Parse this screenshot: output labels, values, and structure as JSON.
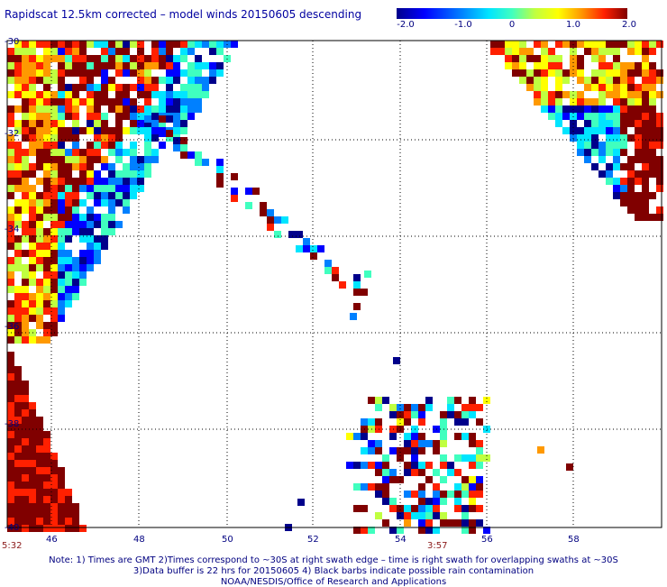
{
  "title": "Rapidscat 12.5km corrected – model winds 20150605 descending",
  "colorbar": {
    "colors": [
      "#00008b",
      "#0000ff",
      "#0080ff",
      "#00e5ff",
      "#40ffbf",
      "#c0ff40",
      "#ffff00",
      "#ff9900",
      "#ff2000",
      "#800000"
    ],
    "tick_labels": [
      "-2.0",
      "-1.0",
      "0",
      "1.0",
      "2.0"
    ],
    "range": [
      -2.0,
      2.0
    ]
  },
  "axes": {
    "lon_labels": [
      "46",
      "48",
      "50",
      "52",
      "54",
      "56",
      "58"
    ],
    "lat_labels": [
      "-30",
      "-32",
      "-34",
      "-36",
      "-38",
      "-40"
    ],
    "lon_range": [
      45,
      59.7
    ],
    "lat_range": [
      -30,
      -40
    ],
    "grid": "dotted"
  },
  "time_labels": [
    "5:32",
    "3:57"
  ],
  "notes": [
    "Note: 1) Times are GMT 2)Times correspond to ~30S at right swath edge – time is right swath for overlapping swaths at ~30S",
    "3)Data buffer is 22 hrs for 20150605 4) Black barbs indicate possible rain contamination",
    "NOAA/NESDIS/Office of Research and Applications"
  ],
  "icons": {
    "colorbar": "colorbar-icon"
  }
}
